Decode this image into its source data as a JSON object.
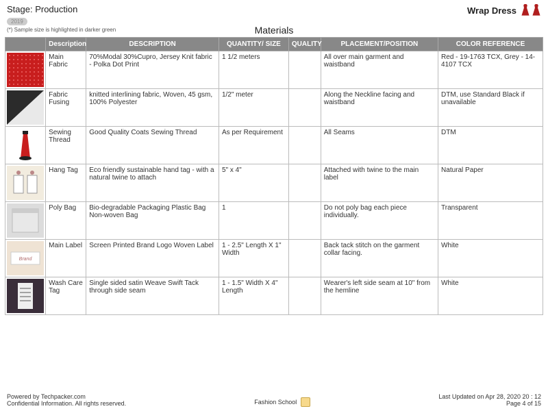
{
  "header": {
    "stage_label": "Stage: Production",
    "product_name": "Wrap Dress",
    "badge": "2019",
    "sample_note": "(*) Sample size is highlighted in darker green",
    "dress_icon_color": "#b01e1e"
  },
  "section_title": "Materials",
  "table": {
    "header_bg": "#888888",
    "header_fg": "#ffffff",
    "border_color": "#bbbbbb",
    "columns": [
      "",
      "Description",
      "DESCRIPTION",
      "QUANTITY/ SIZE",
      "QUALITY",
      "PLACEMENT/POSITION",
      "COLOR REFERENCE"
    ],
    "rows": [
      {
        "swatch": {
          "type": "dotted",
          "bg": "#c81e1e",
          "dot": "#e66"
        },
        "short": "Main Fabric",
        "desc": "70%Modal 30%Cupro, Jersey Knit fabric - Polka Dot Print",
        "qty": "1 1/2 meters",
        "quality": "",
        "placement": "All over main garment and waistband",
        "color": "Red - 19-1763 TCX, Grey - 14-4107 TCX"
      },
      {
        "swatch": {
          "type": "split",
          "left": "#2b2b2b",
          "right": "#e9e9e9"
        },
        "short": "Fabric Fusing",
        "desc": "knitted interlining fabric, Woven, 45 gsm, 100% Polyester",
        "qty": "1/2\" meter",
        "quality": "",
        "placement": "Along the Neckline facing and waistband",
        "color": "DTM, use Standard Black if unavailable"
      },
      {
        "swatch": {
          "type": "cone",
          "bg": "#ffffff",
          "cone": "#c81e1e",
          "cap": "#222"
        },
        "short": "Sewing Thread",
        "desc": "Good Quality Coats Sewing Thread",
        "qty": "As per Requirement",
        "quality": "",
        "placement": "All Seams",
        "color": "DTM"
      },
      {
        "swatch": {
          "type": "hangtag",
          "bg": "#f2ecdf",
          "tag": "#fff"
        },
        "short": "Hang Tag",
        "desc": "Eco friendly sustainable hand tag - with a natural twine to attach",
        "qty": "5\" x 4\"",
        "quality": "",
        "placement": "Attached with twine to the main label",
        "color": "Natural Paper"
      },
      {
        "swatch": {
          "type": "polybag",
          "bg": "#dcdcdc"
        },
        "short": "Poly Bag",
        "desc": "Bio-degradable Packaging Plastic Bag Non-woven Bag",
        "qty": "1",
        "quality": "",
        "placement": "Do not poly bag each piece individually.",
        "color": "Transparent"
      },
      {
        "swatch": {
          "type": "label",
          "bg": "#efe3d4",
          "ink": "#b06a6a"
        },
        "short": "Main Label",
        "desc": "Screen Printed Brand Logo Woven Label",
        "qty": "1 - 2.5\" Length X 1\" Width",
        "quality": "",
        "placement": "Back tack stitch on the garment collar facing.",
        "color": "White"
      },
      {
        "swatch": {
          "type": "washcare",
          "bg": "#3a2e3a",
          "tag": "#eee"
        },
        "short": "Wash Care Tag",
        "desc": "Single sided satin Weave Swift Tack through side seam",
        "qty": "1 - 1.5\" Width X 4\" Length",
        "quality": "",
        "placement": "Wearer's left side seam at 10\" from the hemline",
        "color": "White"
      }
    ]
  },
  "footer": {
    "powered": "Powered by Techpacker.com",
    "confidential": "Confidential Information. All rights reserved.",
    "center_label": "Fashion School",
    "updated": "Last Updated on Apr 28, 2020 20 : 12",
    "page": "Page 4 of 15"
  }
}
